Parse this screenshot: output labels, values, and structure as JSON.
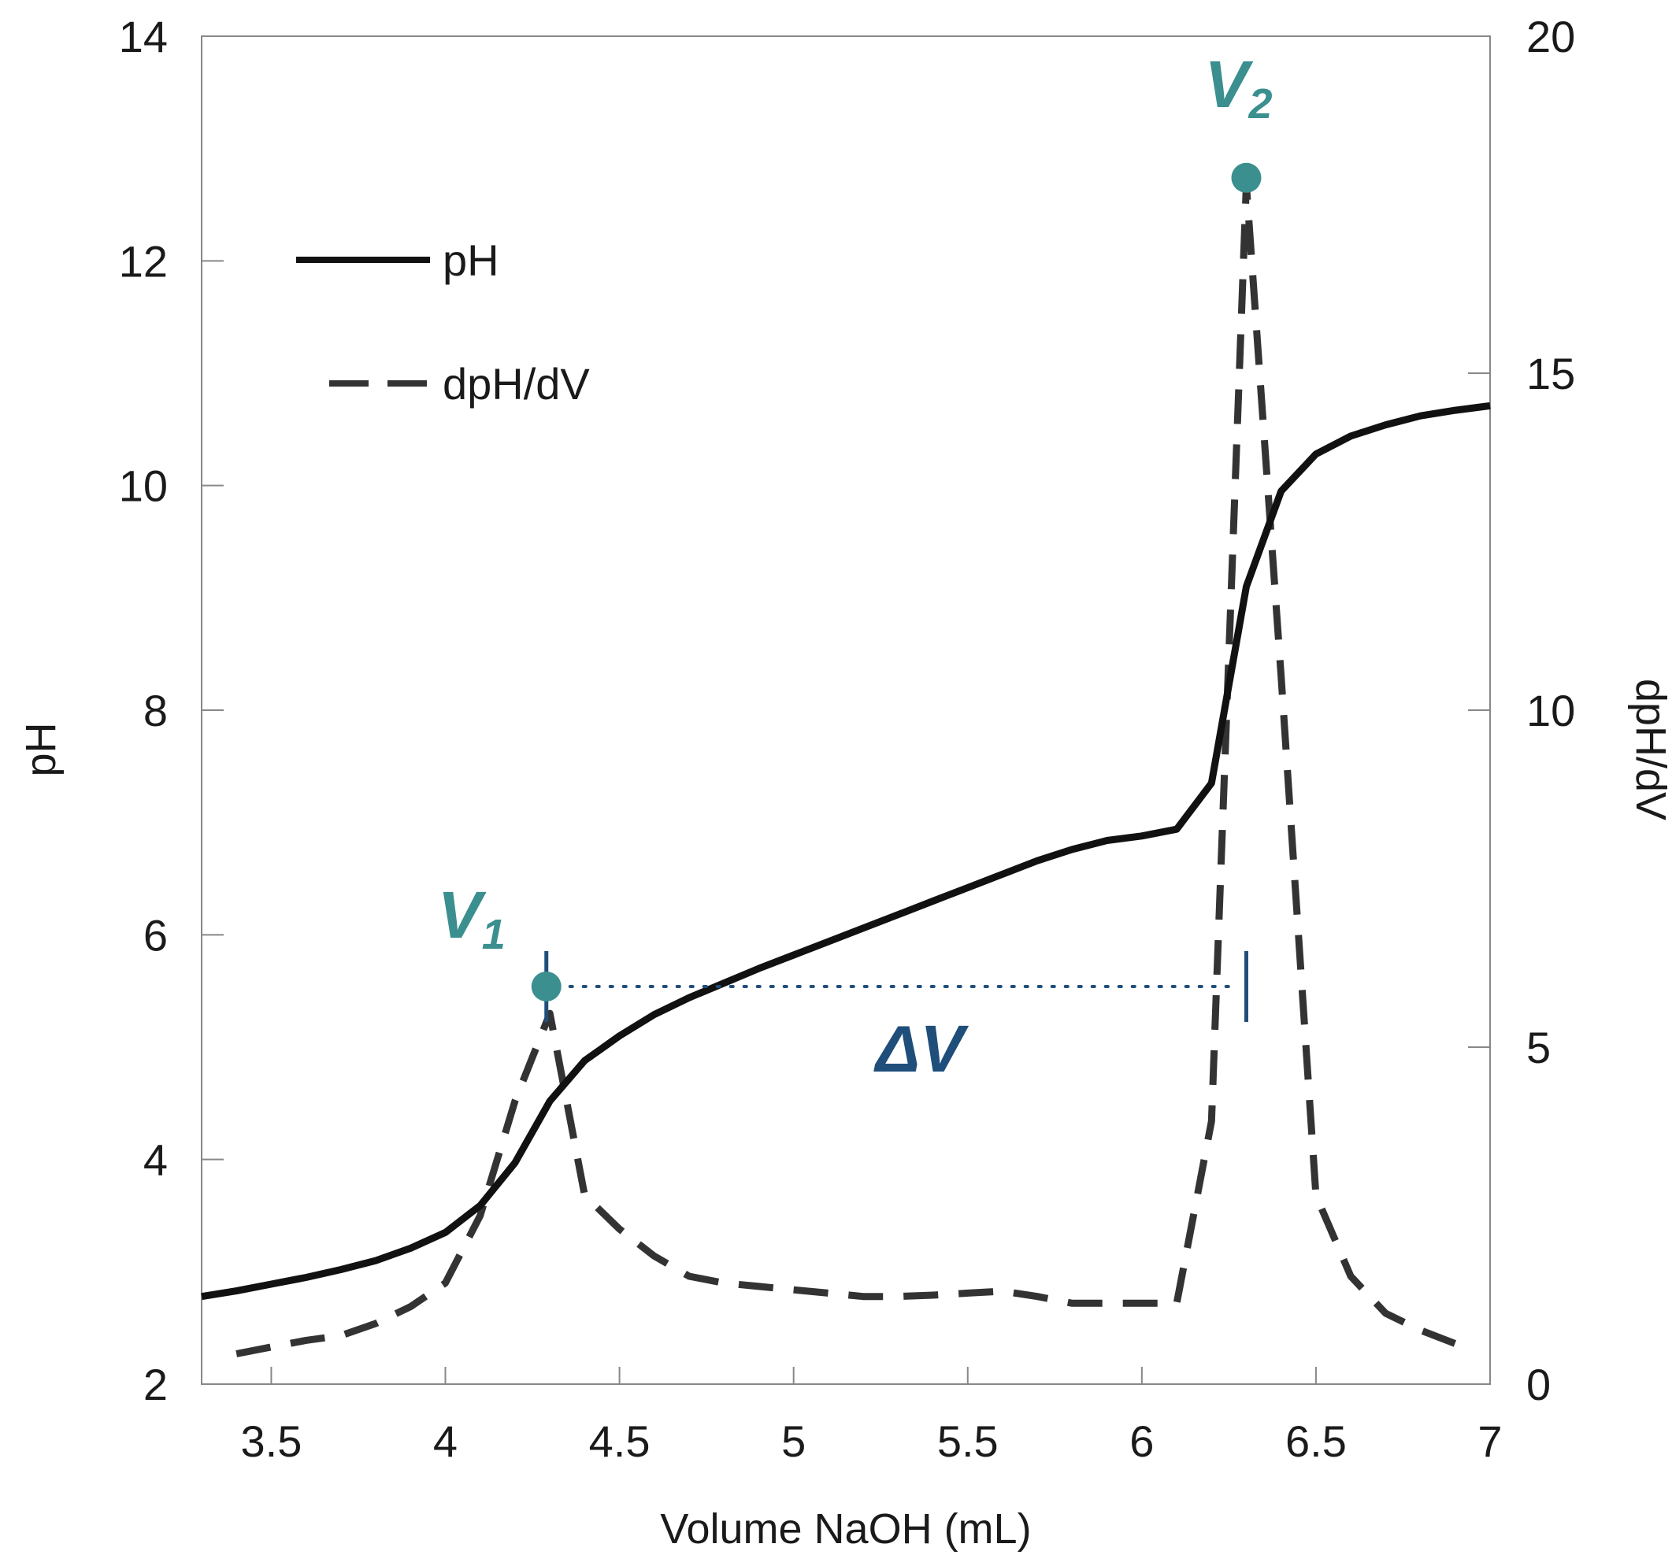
{
  "chart_data": {
    "type": "line",
    "title": "",
    "xlabel": "Volume NaOH (mL)",
    "ylabel": "pH",
    "y2label": "dpH/dV",
    "xlim": [
      3.3,
      7.0
    ],
    "ylim": [
      2,
      14
    ],
    "y2lim": [
      0,
      20
    ],
    "x_ticks": [
      3.5,
      4,
      4.5,
      5,
      5.5,
      6,
      6.5,
      7
    ],
    "x_tick_labels": [
      "3.5",
      "4",
      "4.5",
      "5",
      "5.5",
      "6",
      "6.5",
      "7"
    ],
    "y_ticks": [
      2,
      4,
      6,
      8,
      10,
      12,
      14
    ],
    "y_tick_labels": [
      "2",
      "4",
      "6",
      "8",
      "10",
      "12",
      "14"
    ],
    "y2_ticks": [
      0,
      5,
      10,
      15,
      20
    ],
    "y2_tick_labels": [
      "0",
      "5",
      "10",
      "15",
      "20"
    ],
    "grid": false,
    "legend_position": "top-left",
    "series": [
      {
        "name": "pH",
        "axis": "left",
        "style": "solid",
        "x": [
          3.3,
          3.4,
          3.5,
          3.6,
          3.7,
          3.8,
          3.9,
          4.0,
          4.1,
          4.2,
          4.3,
          4.4,
          4.5,
          4.6,
          4.7,
          4.8,
          4.9,
          5.0,
          5.1,
          5.2,
          5.3,
          5.4,
          5.5,
          5.6,
          5.7,
          5.8,
          5.9,
          6.0,
          6.1,
          6.2,
          6.3,
          6.4,
          6.5,
          6.6,
          6.7,
          6.8,
          6.9,
          7.0
        ],
        "values": [
          2.78,
          2.83,
          2.89,
          2.95,
          3.02,
          3.1,
          3.21,
          3.35,
          3.59,
          3.97,
          4.52,
          4.88,
          5.1,
          5.29,
          5.44,
          5.57,
          5.7,
          5.82,
          5.94,
          6.06,
          6.18,
          6.3,
          6.42,
          6.54,
          6.66,
          6.76,
          6.84,
          6.88,
          6.94,
          7.35,
          9.1,
          9.95,
          10.28,
          10.44,
          10.54,
          10.62,
          10.67,
          10.71
        ]
      },
      {
        "name": "dpH/dV",
        "axis": "right",
        "style": "dashed",
        "x": [
          3.4,
          3.5,
          3.6,
          3.7,
          3.8,
          3.9,
          4.0,
          4.1,
          4.2,
          4.3,
          4.4,
          4.5,
          4.6,
          4.7,
          4.8,
          4.9,
          5.0,
          5.1,
          5.2,
          5.3,
          5.4,
          5.5,
          5.6,
          5.7,
          5.8,
          5.9,
          6.0,
          6.1,
          6.2,
          6.3,
          6.4,
          6.5,
          6.6,
          6.7,
          6.8,
          6.9,
          6.95
        ],
        "values": [
          0.45,
          0.55,
          0.65,
          0.72,
          0.9,
          1.15,
          1.5,
          2.5,
          4.2,
          5.5,
          2.8,
          2.3,
          1.9,
          1.6,
          1.5,
          1.45,
          1.4,
          1.35,
          1.3,
          1.3,
          1.32,
          1.35,
          1.38,
          1.3,
          1.2,
          1.2,
          1.2,
          1.2,
          3.9,
          17.8,
          10.5,
          2.8,
          1.6,
          1.05,
          0.8,
          0.6,
          0.5
        ]
      }
    ],
    "markers": [
      {
        "label": "V",
        "subscript": "1",
        "x": 4.29,
        "y2": 5.9
      },
      {
        "label": "V",
        "subscript": "2",
        "x": 6.3,
        "y2": 17.9
      }
    ],
    "annotations": [
      {
        "label": "ΔV",
        "from_x": 4.29,
        "to_x": 6.3,
        "y2": 5.9
      }
    ],
    "colors": {
      "ph_line": "#111111",
      "derivative_line": "#333333",
      "marker": "#3b8f8f",
      "delta_v": "#1f4e7a",
      "axis": "#888888"
    }
  }
}
